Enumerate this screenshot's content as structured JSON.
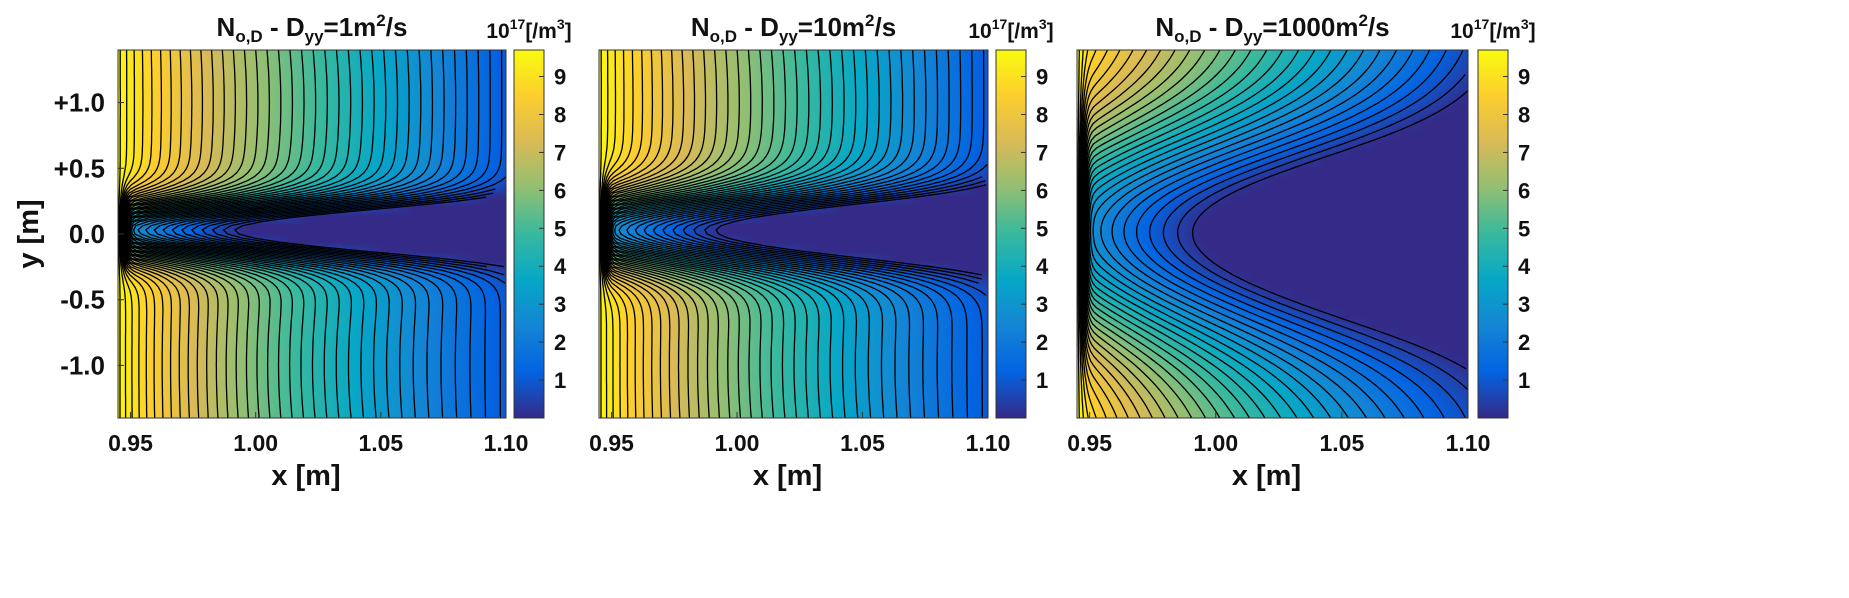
{
  "chart_data": [
    {
      "type": "contour",
      "title": {
        "base": "N",
        "sub": "o,D",
        "mid": " - D",
        "sub2": "yy",
        "tail": "=1m",
        "sup": "2",
        "end": "/s"
      },
      "case": "Dyy = 1 m2/s",
      "diffusion_m2_per_s": 1,
      "core_width": 0.16,
      "xlabel": "x [m]",
      "ylabel": "y [m]",
      "xlim": [
        0.945,
        1.1
      ],
      "ylim": [
        -1.4,
        1.4
      ],
      "xticks": [
        "0.95",
        "1.00",
        "1.05",
        "1.10"
      ],
      "xtick_values": [
        0.95,
        1.0,
        1.05,
        1.1
      ],
      "yticks": [
        "+1.0",
        "+0.5",
        "0.0",
        "-0.5",
        "-1.0"
      ],
      "ytick_values": [
        1.0,
        0.5,
        0.0,
        -0.5,
        -1.0
      ],
      "show_yaxis": true,
      "contour_levels": 40,
      "colorbar": {
        "unit_base": "10",
        "unit_sup": "17",
        "unit_tail": "[/m",
        "unit_sup2": "3",
        "unit_end": "]",
        "ticks": [
          "9",
          "8",
          "7",
          "6",
          "5",
          "4",
          "3",
          "2",
          "1"
        ],
        "tick_values": [
          9,
          8,
          7,
          6,
          5,
          4,
          3,
          2,
          1
        ],
        "range": [
          0,
          9.7
        ]
      }
    },
    {
      "type": "contour",
      "title": {
        "base": "N",
        "sub": "o,D",
        "mid": " - D",
        "sub2": "yy",
        "tail": "=10m",
        "sup": "2",
        "end": "/s"
      },
      "case": "Dyy = 10 m2/s",
      "diffusion_m2_per_s": 10,
      "core_width": 0.2,
      "xlabel": "x [m]",
      "ylabel": "",
      "xlim": [
        0.945,
        1.1
      ],
      "ylim": [
        -1.4,
        1.4
      ],
      "xticks": [
        "0.95",
        "1.00",
        "1.05",
        "1.10"
      ],
      "xtick_values": [
        0.95,
        1.0,
        1.05,
        1.1
      ],
      "yticks": [],
      "ytick_values": [],
      "show_yaxis": false,
      "contour_levels": 40,
      "colorbar": {
        "unit_base": "10",
        "unit_sup": "17",
        "unit_tail": "[/m",
        "unit_sup2": "3",
        "unit_end": "]",
        "ticks": [
          "9",
          "8",
          "7",
          "6",
          "5",
          "4",
          "3",
          "2",
          "1"
        ],
        "tick_values": [
          9,
          8,
          7,
          6,
          5,
          4,
          3,
          2,
          1
        ],
        "range": [
          0,
          9.7
        ]
      }
    },
    {
      "type": "contour",
      "title": {
        "base": "N",
        "sub": "o,D",
        "mid": " - D",
        "sub2": "yy",
        "tail": "=1000m",
        "sup": "2",
        "end": "/s"
      },
      "case": "Dyy = 1000 m2/s",
      "diffusion_m2_per_s": 1000,
      "core_width": 0.6,
      "xlabel": "x [m]",
      "ylabel": "",
      "xlim": [
        0.945,
        1.1
      ],
      "ylim": [
        -1.4,
        1.4
      ],
      "xticks": [
        "0.95",
        "1.00",
        "1.05",
        "1.10"
      ],
      "xtick_values": [
        0.95,
        1.0,
        1.05,
        1.1
      ],
      "yticks": [],
      "ytick_values": [],
      "show_yaxis": false,
      "contour_levels": 30,
      "colorbar": {
        "unit_base": "10",
        "unit_sup": "17",
        "unit_tail": "[/m",
        "unit_sup2": "3",
        "unit_end": "]",
        "ticks": [
          "9",
          "8",
          "7",
          "6",
          "5",
          "4",
          "3",
          "2",
          "1"
        ],
        "tick_values": [
          9,
          8,
          7,
          6,
          5,
          4,
          3,
          2,
          1
        ],
        "range": [
          0,
          9.7
        ]
      }
    }
  ],
  "colormap": {
    "name": "parula",
    "stops": [
      "#352a87",
      "#0363e1",
      "#1485d4",
      "#06a7c6",
      "#38b99e",
      "#92bf73",
      "#d9ba56",
      "#fcce2e",
      "#f9fb0e"
    ]
  }
}
